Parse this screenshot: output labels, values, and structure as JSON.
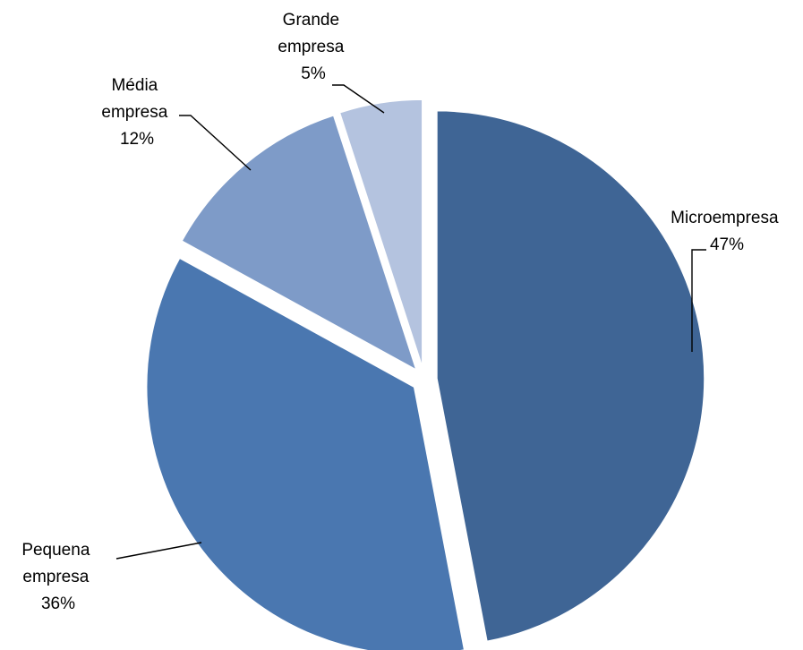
{
  "chart_data": {
    "type": "pie",
    "title": "",
    "slices": [
      {
        "name": "Microempresa",
        "label_lines": [
          "Microempresa"
        ],
        "value": 47,
        "pct_label": "47%",
        "color": "#3F6595"
      },
      {
        "name": "Pequena empresa",
        "label_lines": [
          "Pequena",
          "empresa"
        ],
        "value": 36,
        "pct_label": "36%",
        "color": "#4A77B0"
      },
      {
        "name": "Média empresa",
        "label_lines": [
          "Média",
          "empresa"
        ],
        "value": 12,
        "pct_label": "12%",
        "color": "#7E9BC8"
      },
      {
        "name": "Grande empresa",
        "label_lines": [
          "Grande",
          "empresa"
        ],
        "value": 5,
        "pct_label": "5%",
        "color": "#B4C3DF"
      }
    ],
    "legend": "none",
    "exploded": true,
    "data_labels": "category and percentage, outside with leader lines"
  }
}
